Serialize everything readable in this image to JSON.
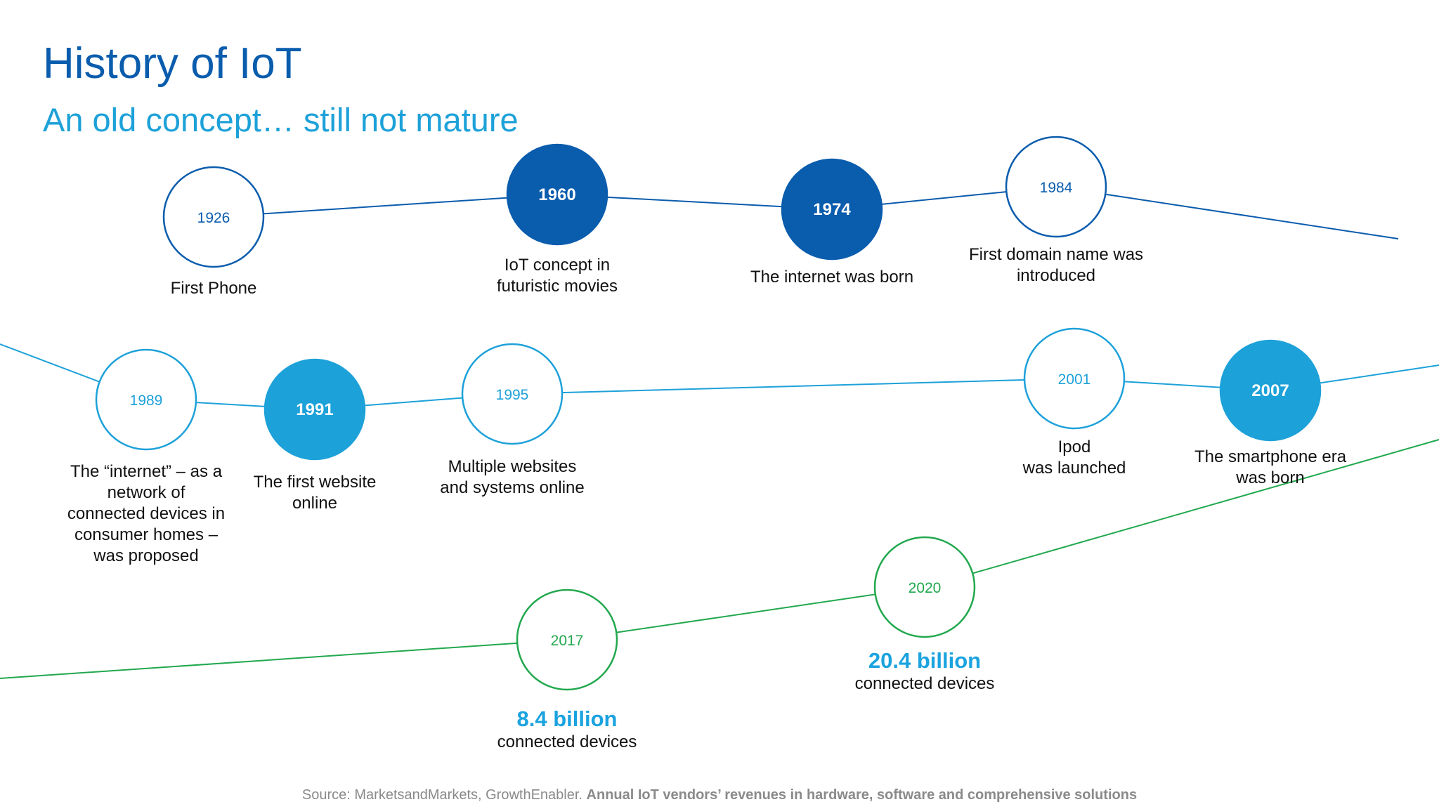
{
  "header": {
    "title": "History of IoT",
    "subtitle": "An old concept… still not mature"
  },
  "colors": {
    "dark_blue": "#0a5cad",
    "mid_blue": "#1da1d9",
    "green": "#22a84e",
    "text": "#111111",
    "source": "#8a8a8a"
  },
  "timeline": {
    "rows": [
      {
        "color": "dark_blue",
        "milestones": [
          {
            "year": "1926",
            "filled": false,
            "label": "First Phone"
          },
          {
            "year": "1960",
            "filled": true,
            "label": "IoT concept in\nfuturistic movies"
          },
          {
            "year": "1974",
            "filled": true,
            "label": "The internet was born"
          },
          {
            "year": "1984",
            "filled": false,
            "label": "First domain name was\nintroduced"
          }
        ]
      },
      {
        "color": "mid_blue",
        "milestones": [
          {
            "year": "1989",
            "filled": false,
            "label": "The “internet” – as a\nnetwork of\nconnected devices in\nconsumer homes –\nwas proposed"
          },
          {
            "year": "1991",
            "filled": true,
            "label": "The first website\nonline"
          },
          {
            "year": "1995",
            "filled": false,
            "label": "Multiple websites\nand systems online"
          },
          {
            "year": "2001",
            "filled": false,
            "label": "Ipod\nwas launched"
          },
          {
            "year": "2007",
            "filled": true,
            "label": "The smartphone era\nwas born"
          }
        ]
      },
      {
        "color": "green",
        "milestones": [
          {
            "year": "2017",
            "filled": false,
            "value": "8.4 billion",
            "caption": "connected devices"
          },
          {
            "year": "2020",
            "filled": false,
            "value": "20.4 billion",
            "caption": "connected devices"
          }
        ]
      }
    ]
  },
  "source": {
    "prefix": "Source: MarketsandMarkets, GrowthEnabler.",
    "emphasis": "Annual IoT vendors’ revenues in hardware, software and comprehensive solutions"
  }
}
